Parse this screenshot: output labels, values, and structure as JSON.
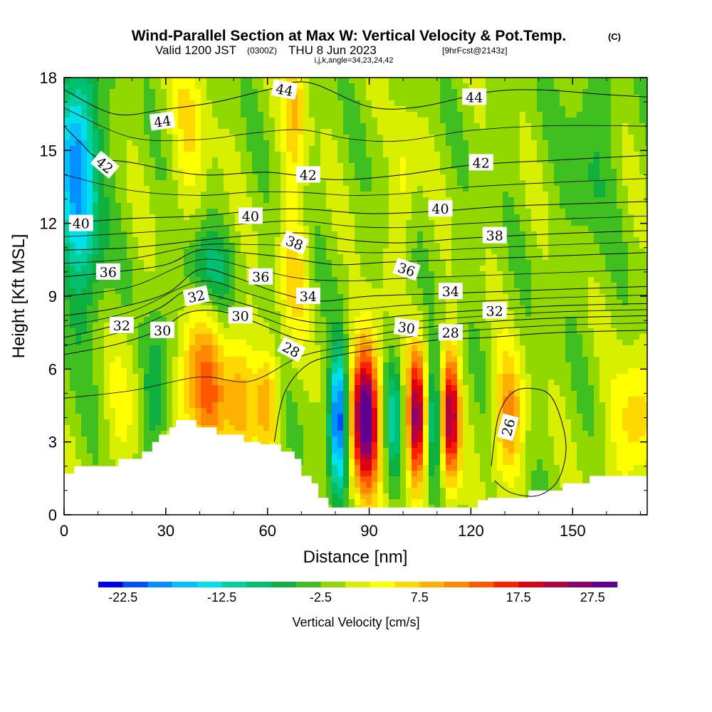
{
  "header": {
    "title": "Wind-Parallel Section at Max W: Vertical Velocity & Pot.Temp.",
    "copyright": "(C)",
    "valid_prefix": "Valid 1200 JST",
    "valid_utc": "(0300Z)",
    "valid_date": "THU 8 Jun 2023",
    "forecast": "[9hrFcst@2143z]",
    "indices": "i,j,k,angle=34,23,24,42"
  },
  "chart_data": {
    "type": "heatmap",
    "xlabel": "Distance [nm]",
    "ylabel": "Height [Kft MSL]",
    "xlim": [
      0,
      172
    ],
    "ylim": [
      0,
      18
    ],
    "x_ticks": [
      "0",
      "30",
      "60",
      "90",
      "120",
      "150"
    ],
    "y_ticks": [
      "0",
      "3",
      "6",
      "9",
      "12",
      "15",
      "18"
    ],
    "colorbar": {
      "label": "Vertical Velocity [cm/s]",
      "tick_labels": [
        "-22.5",
        "-12.5",
        "-2.5",
        "7.5",
        "17.5",
        "27.5"
      ],
      "colors": [
        "#0000ee",
        "#0050ff",
        "#0090ff",
        "#00c0ff",
        "#00e0e8",
        "#00d0a0",
        "#00c070",
        "#10b040",
        "#40c020",
        "#90d800",
        "#d8f000",
        "#ffff00",
        "#ffd800",
        "#ffb000",
        "#ff8800",
        "#ff5800",
        "#ff2000",
        "#dd0010",
        "#b00040",
        "#880070",
        "#600090"
      ]
    },
    "background_w_cm_s": 0,
    "w_features": [
      {
        "x": 4,
        "y": 15,
        "sx": 4,
        "sy": 3,
        "w": -16
      },
      {
        "x": 6,
        "y": 11,
        "sx": 5,
        "sy": 3,
        "w": -6
      },
      {
        "x": 18,
        "y": 4.5,
        "sx": 4,
        "sy": 2.5,
        "w": 4
      },
      {
        "x": 27,
        "y": 5,
        "sx": 3,
        "sy": 2,
        "w": -8
      },
      {
        "x": 40,
        "y": 5.2,
        "sx": 5,
        "sy": 2.2,
        "w": 13
      },
      {
        "x": 44,
        "y": 4.5,
        "sx": 3,
        "sy": 1.6,
        "w": 4
      },
      {
        "x": 52,
        "y": 4.5,
        "sx": 3,
        "sy": 2.2,
        "w": 10
      },
      {
        "x": 42,
        "y": 10,
        "sx": 5,
        "sy": 1.2,
        "w": -8
      },
      {
        "x": 68,
        "y": 10,
        "sx": 3,
        "sy": 2,
        "w": 7
      },
      {
        "x": 68,
        "y": 17,
        "sx": 2.5,
        "sy": 2.5,
        "w": 9
      },
      {
        "x": 37,
        "y": 16,
        "sx": 4,
        "sy": 2.5,
        "w": 6
      },
      {
        "x": 60,
        "y": 4.8,
        "sx": 2.5,
        "sy": 1.6,
        "w": 10
      },
      {
        "x": 81,
        "y": 4,
        "sx": 1.9,
        "sy": 2,
        "w": -22
      },
      {
        "x": 89,
        "y": 4.1,
        "sx": 3,
        "sy": 2.2,
        "w": 30
      },
      {
        "x": 97,
        "y": 4,
        "sx": 1.8,
        "sy": 1.8,
        "w": -10
      },
      {
        "x": 104,
        "y": 4,
        "sx": 1.9,
        "sy": 2,
        "w": 26
      },
      {
        "x": 109,
        "y": 4,
        "sx": 1.5,
        "sy": 1.8,
        "w": -10
      },
      {
        "x": 114,
        "y": 4,
        "sx": 1.9,
        "sy": 2,
        "w": 24
      },
      {
        "x": 131,
        "y": 4,
        "sx": 3,
        "sy": 1.8,
        "w": 13
      },
      {
        "x": 168,
        "y": 3.6,
        "sx": 5,
        "sy": 2,
        "w": 8
      },
      {
        "x": 100,
        "y": 13.5,
        "sx": 2.5,
        "sy": 2,
        "w": 5
      },
      {
        "x": 155,
        "y": 15,
        "sx": 5,
        "sy": 3,
        "w": -4
      }
    ],
    "terrain_kft": [
      [
        0,
        1.7
      ],
      [
        3,
        1.7
      ],
      [
        3,
        2.0
      ],
      [
        16,
        2.0
      ],
      [
        16,
        2.3
      ],
      [
        23,
        2.3
      ],
      [
        23,
        2.6
      ],
      [
        26,
        2.6
      ],
      [
        26,
        3.0
      ],
      [
        28,
        3.0
      ],
      [
        28,
        3.3
      ],
      [
        31,
        3.3
      ],
      [
        31,
        3.6
      ],
      [
        33,
        3.6
      ],
      [
        33,
        3.9
      ],
      [
        39,
        3.9
      ],
      [
        39,
        3.6
      ],
      [
        45,
        3.6
      ],
      [
        45,
        3.3
      ],
      [
        53,
        3.3
      ],
      [
        53,
        3.0
      ],
      [
        58,
        3.0
      ],
      [
        58,
        2.9
      ],
      [
        64,
        2.9
      ],
      [
        64,
        2.6
      ],
      [
        68,
        2.6
      ],
      [
        68,
        2.3
      ],
      [
        70,
        2.3
      ],
      [
        70,
        1.6
      ],
      [
        73,
        1.6
      ],
      [
        73,
        1.3
      ],
      [
        75,
        1.3
      ],
      [
        75,
        0.7
      ],
      [
        78,
        0.7
      ],
      [
        78,
        0.3
      ],
      [
        82,
        0.3
      ],
      [
        82,
        0.3
      ],
      [
        122,
        0.3
      ],
      [
        122,
        0.6
      ],
      [
        125,
        0.6
      ],
      [
        125,
        0.7
      ],
      [
        137,
        0.7
      ],
      [
        137,
        1.0
      ],
      [
        147,
        1.0
      ],
      [
        147,
        1.3
      ],
      [
        155,
        1.3
      ],
      [
        155,
        1.6
      ],
      [
        172,
        1.6
      ]
    ],
    "theta_contours": [
      {
        "label": "26",
        "pts": [
          [
            126,
            2.0
          ],
          [
            128,
            4.0
          ],
          [
            132,
            5.0
          ],
          [
            138,
            5.2
          ],
          [
            144,
            4.8
          ],
          [
            148,
            3.0
          ],
          [
            146,
            1.5
          ],
          [
            140,
            0.8
          ],
          [
            132,
            0.9
          ],
          [
            127,
            1.4
          ]
        ]
      },
      {
        "label": "28",
        "pts": [
          [
            62,
            3.0
          ],
          [
            65,
            5.0
          ],
          [
            72,
            6.2
          ],
          [
            82,
            6.6
          ],
          [
            96,
            6.9
          ],
          [
            110,
            7.2
          ],
          [
            125,
            7.3
          ],
          [
            145,
            7.5
          ],
          [
            172,
            7.6
          ]
        ]
      },
      {
        "label": "30",
        "pts": [
          [
            0,
            6.6
          ],
          [
            15,
            7.0
          ],
          [
            28,
            7.6
          ],
          [
            36,
            8.3
          ],
          [
            45,
            8.4
          ],
          [
            55,
            8.0
          ],
          [
            70,
            7.2
          ],
          [
            82,
            7.2
          ],
          [
            100,
            7.6
          ],
          [
            120,
            7.9
          ],
          [
            145,
            8.1
          ],
          [
            172,
            8.2
          ]
        ]
      },
      {
        "label": "32",
        "pts": [
          [
            0,
            7.3
          ],
          [
            15,
            7.8
          ],
          [
            28,
            8.5
          ],
          [
            36,
            9.2
          ],
          [
            45,
            9.0
          ],
          [
            55,
            8.6
          ],
          [
            70,
            8.0
          ],
          [
            82,
            7.9
          ],
          [
            100,
            8.2
          ],
          [
            120,
            8.4
          ],
          [
            145,
            8.6
          ],
          [
            172,
            8.7
          ]
        ]
      },
      {
        "label": "34",
        "pts": [
          [
            0,
            8.2
          ],
          [
            15,
            8.5
          ],
          [
            30,
            9.1
          ],
          [
            40,
            10.1
          ],
          [
            50,
            9.8
          ],
          [
            62,
            9.2
          ],
          [
            75,
            8.8
          ],
          [
            90,
            9.0
          ],
          [
            110,
            9.1
          ],
          [
            130,
            9.2
          ],
          [
            150,
            9.3
          ],
          [
            172,
            9.4
          ]
        ]
      },
      {
        "label": "36",
        "pts": [
          [
            0,
            9.8
          ],
          [
            15,
            10.0
          ],
          [
            30,
            10.3
          ],
          [
            40,
            10.9
          ],
          [
            52,
            10.8
          ],
          [
            65,
            10.6
          ],
          [
            80,
            10.3
          ],
          [
            95,
            10.4
          ],
          [
            115,
            10.5
          ],
          [
            135,
            10.6
          ],
          [
            172,
            10.8
          ]
        ]
      },
      {
        "label": "38",
        "pts": [
          [
            0,
            10.9
          ],
          [
            20,
            11.0
          ],
          [
            40,
            11.3
          ],
          [
            55,
            11.5
          ],
          [
            70,
            11.6
          ],
          [
            85,
            11.3
          ],
          [
            100,
            11.2
          ],
          [
            120,
            11.4
          ],
          [
            150,
            11.6
          ],
          [
            172,
            11.7
          ]
        ]
      },
      {
        "label": "40",
        "pts": [
          [
            0,
            12.0
          ],
          [
            20,
            12.2
          ],
          [
            40,
            12.3
          ],
          [
            55,
            12.5
          ],
          [
            70,
            12.6
          ],
          [
            90,
            12.4
          ],
          [
            110,
            12.5
          ],
          [
            130,
            12.7
          ],
          [
            150,
            12.8
          ],
          [
            172,
            12.9
          ]
        ]
      },
      {
        "label": "42",
        "pts": [
          [
            0,
            16.0
          ],
          [
            5,
            15.3
          ],
          [
            10,
            14.7
          ],
          [
            20,
            14.5
          ],
          [
            40,
            14.0
          ],
          [
            60,
            14.1
          ],
          [
            80,
            13.8
          ],
          [
            100,
            14.0
          ],
          [
            120,
            14.4
          ],
          [
            145,
            14.6
          ],
          [
            172,
            14.8
          ]
        ]
      },
      {
        "label": "44",
        "pts": [
          [
            0,
            17.5
          ],
          [
            15,
            16.5
          ],
          [
            30,
            16.7
          ],
          [
            45,
            17.0
          ],
          [
            60,
            17.5
          ],
          [
            72,
            17.8
          ],
          [
            90,
            16.8
          ],
          [
            105,
            16.8
          ],
          [
            125,
            17.4
          ],
          [
            140,
            17.5
          ],
          [
            160,
            17.3
          ],
          [
            172,
            17.2
          ]
        ]
      }
    ],
    "contour_labels": [
      {
        "text": "44",
        "x": 29,
        "y": 16.2,
        "rot": -8
      },
      {
        "text": "44",
        "x": 65,
        "y": 17.5,
        "rot": 10
      },
      {
        "text": "44",
        "x": 121,
        "y": 17.2,
        "rot": 0
      },
      {
        "text": "42",
        "x": 12,
        "y": 14.4,
        "rot": 40
      },
      {
        "text": "42",
        "x": 72,
        "y": 14.0,
        "rot": 0
      },
      {
        "text": "42",
        "x": 123,
        "y": 14.5,
        "rot": 0
      },
      {
        "text": "40",
        "x": 5,
        "y": 12.0,
        "rot": 0
      },
      {
        "text": "40",
        "x": 55,
        "y": 12.3,
        "rot": 0
      },
      {
        "text": "40",
        "x": 111,
        "y": 12.6,
        "rot": 0
      },
      {
        "text": "38",
        "x": 68,
        "y": 11.2,
        "rot": 22
      },
      {
        "text": "38",
        "x": 127,
        "y": 11.5,
        "rot": 0
      },
      {
        "text": "36",
        "x": 13,
        "y": 10.0,
        "rot": 0
      },
      {
        "text": "36",
        "x": 58,
        "y": 9.8,
        "rot": 0
      },
      {
        "text": "36",
        "x": 101,
        "y": 10.1,
        "rot": 18
      },
      {
        "text": "34",
        "x": 72,
        "y": 9.0,
        "rot": 0
      },
      {
        "text": "34",
        "x": 114,
        "y": 9.2,
        "rot": 0
      },
      {
        "text": "32",
        "x": 17,
        "y": 7.8,
        "rot": 0
      },
      {
        "text": "32",
        "x": 39,
        "y": 9.0,
        "rot": -12
      },
      {
        "text": "32",
        "x": 127,
        "y": 8.4,
        "rot": 0
      },
      {
        "text": "30",
        "x": 29,
        "y": 7.6,
        "rot": 0
      },
      {
        "text": "30",
        "x": 52,
        "y": 8.2,
        "rot": 0
      },
      {
        "text": "30",
        "x": 101,
        "y": 7.7,
        "rot": 8
      },
      {
        "text": "28",
        "x": 67,
        "y": 6.8,
        "rot": 28
      },
      {
        "text": "28",
        "x": 114,
        "y": 7.5,
        "rot": 0
      },
      {
        "text": "26",
        "x": 131,
        "y": 3.6,
        "rot": -75
      }
    ]
  }
}
